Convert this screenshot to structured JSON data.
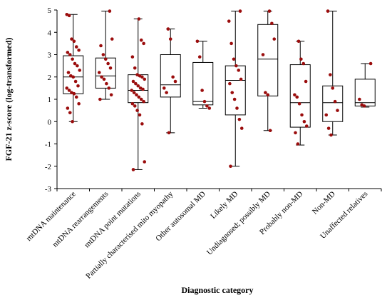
{
  "chart_data": {
    "type": "box",
    "xlabel": "Diagnostic category",
    "ylabel": "FGF-21 z-score (log-transformed)",
    "ylim": [
      -3,
      5
    ],
    "yticks": [
      -3,
      -2,
      -1,
      0,
      1,
      2,
      3,
      4,
      5
    ],
    "grid": false,
    "colors": {
      "points": "#9b0d0d",
      "box": "#000000",
      "axis": "#000000"
    },
    "categories": [
      "mtDNA maintenance",
      "mtDNA rearrangements",
      "mtDNA point mutations",
      "Partially characterised mito myopathy",
      "Other autosomal MD",
      "Likely MD",
      "Undiagnosed; possibly MD",
      "Probably non-MD",
      "Non-MD",
      "Unaffected relatives"
    ],
    "boxes": [
      {
        "min": 0.0,
        "q1": 1.25,
        "median": 2.0,
        "q3": 2.95,
        "max": 4.8
      },
      {
        "min": 1.0,
        "q1": 1.5,
        "median": 2.05,
        "q3": 2.85,
        "max": 4.95
      },
      {
        "min": -2.15,
        "q1": 0.85,
        "median": 1.4,
        "q3": 2.1,
        "max": 4.6
      },
      {
        "min": -0.5,
        "q1": 1.1,
        "median": 1.65,
        "q3": 3.0,
        "max": 4.15
      },
      {
        "min": 0.6,
        "q1": 0.75,
        "median": 0.9,
        "q3": 2.65,
        "max": 3.6
      },
      {
        "min": -2.0,
        "q1": 0.3,
        "median": 1.85,
        "q3": 2.5,
        "max": 4.95
      },
      {
        "min": -0.4,
        "q1": 1.15,
        "median": 2.8,
        "q3": 4.35,
        "max": 4.95
      },
      {
        "min": -1.05,
        "q1": -0.25,
        "median": 0.85,
        "q3": 2.55,
        "max": 3.6
      },
      {
        "min": -0.6,
        "q1": 0.0,
        "median": 0.85,
        "q3": 1.6,
        "max": 4.95
      },
      {
        "min": 0.65,
        "q1": 0.7,
        "median": 0.85,
        "q3": 1.9,
        "max": 2.6
      }
    ],
    "points": [
      [
        4.8,
        4.75,
        3.7,
        3.6,
        3.35,
        3.2,
        3.1,
        3.0,
        2.8,
        2.6,
        2.5,
        2.3,
        2.2,
        2.05,
        2.0,
        1.8,
        1.6,
        1.5,
        1.4,
        1.3,
        1.25,
        1.1,
        0.8,
        0.6,
        0.4,
        0.0
      ],
      [
        4.95,
        3.7,
        3.4,
        3.0,
        2.8,
        2.6,
        2.4,
        2.2,
        2.0,
        1.9,
        1.7,
        1.5,
        1.2,
        1.0
      ],
      [
        4.6,
        3.65,
        3.5,
        2.9,
        2.4,
        2.1,
        2.05,
        2.0,
        1.9,
        1.8,
        1.7,
        1.6,
        1.5,
        1.45,
        1.4,
        1.3,
        1.2,
        1.1,
        1.0,
        0.9,
        0.8,
        0.7,
        0.5,
        0.3,
        -0.1,
        -1.8,
        -2.15
      ],
      [
        4.15,
        3.7,
        2.0,
        1.8,
        1.5,
        1.3,
        -0.5
      ],
      [
        3.6,
        2.9,
        1.4,
        0.9,
        0.7,
        0.6
      ],
      [
        4.95,
        4.5,
        3.5,
        2.8,
        2.5,
        2.3,
        1.9,
        1.7,
        1.3,
        1.0,
        0.6,
        0.1,
        -0.3,
        -2.0
      ],
      [
        4.95,
        4.4,
        3.7,
        3.0,
        1.3,
        1.2,
        -0.4
      ],
      [
        3.6,
        2.8,
        2.6,
        1.8,
        1.2,
        1.1,
        0.8,
        0.3,
        0.0,
        -0.2,
        -0.5,
        -1.0
      ],
      [
        4.95,
        2.1,
        1.5,
        0.9,
        0.5,
        0.3,
        -0.3,
        -0.6
      ],
      [
        2.6,
        1.0,
        0.75,
        0.7
      ]
    ]
  }
}
